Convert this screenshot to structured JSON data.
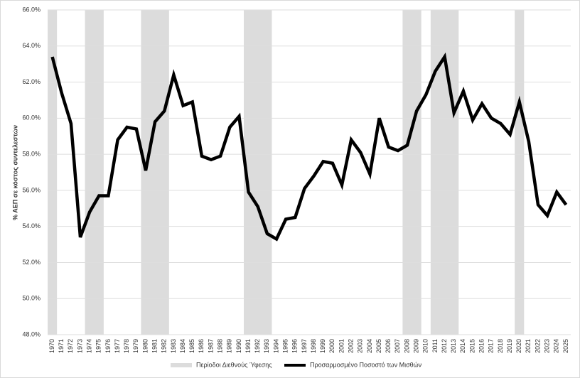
{
  "chart_data": {
    "type": "line",
    "y_label": "% ΑΕΠ σε κόστος συντελεστών",
    "categories": [
      "1970",
      "1971",
      "1972",
      "1973",
      "1974",
      "1975",
      "1976",
      "1977",
      "1978",
      "1979",
      "1980",
      "1981",
      "1982",
      "1983",
      "1984",
      "1985",
      "1986",
      "1987",
      "1988",
      "1989",
      "1990",
      "1991",
      "1992",
      "1993",
      "1994",
      "1995",
      "1996",
      "1997",
      "1998",
      "1999",
      "2000",
      "2001",
      "2002",
      "2003",
      "2004",
      "2005",
      "2006",
      "2007",
      "2008",
      "2009",
      "2010",
      "2011",
      "2012",
      "2013",
      "2014",
      "2015",
      "2016",
      "2017",
      "2018",
      "2019",
      "2020",
      "2021",
      "2022",
      "2023",
      "2024",
      "2025"
    ],
    "series": [
      {
        "name": "Προσαρμοσμένο Ποσοστό των Μισθών",
        "color": "#000000",
        "values": [
          63.4,
          61.4,
          59.7,
          53.4,
          54.8,
          55.7,
          55.7,
          58.8,
          59.5,
          59.4,
          57.1,
          59.8,
          60.4,
          62.4,
          60.7,
          60.9,
          57.9,
          57.7,
          57.9,
          59.5,
          60.1,
          55.9,
          55.1,
          53.6,
          53.3,
          54.4,
          54.5,
          56.1,
          56.8,
          57.6,
          57.5,
          56.3,
          58.8,
          58.1,
          56.9,
          60.0,
          58.4,
          58.2,
          58.5,
          60.4,
          61.3,
          62.6,
          63.4,
          60.3,
          61.5,
          59.9,
          60.8,
          60.0,
          59.7,
          59.1,
          60.9,
          58.7,
          55.2,
          54.6,
          55.9,
          55.2
        ]
      }
    ],
    "shaded": {
      "name": "Περίοδοι Διεθνούς Ύφεσης",
      "color": "#dcdcdc",
      "periods": [
        [
          "1970",
          "1970"
        ],
        [
          "1974",
          "1975"
        ],
        [
          "1980",
          "1982"
        ],
        [
          "1991",
          "1993"
        ],
        [
          "2008",
          "2009"
        ],
        [
          "2011",
          "2013"
        ],
        [
          "2020",
          "2020"
        ]
      ]
    },
    "ylim": [
      48,
      66
    ],
    "yticks": [
      {
        "value": 48,
        "label": "48.0%"
      },
      {
        "value": 50,
        "label": "50.0%"
      },
      {
        "value": 52,
        "label": "52.0%"
      },
      {
        "value": 54,
        "label": "54.0%"
      },
      {
        "value": 56,
        "label": "56.0%"
      },
      {
        "value": 58,
        "label": "58.0%"
      },
      {
        "value": 60,
        "label": "60.0%"
      },
      {
        "value": 62,
        "label": "62.0%"
      },
      {
        "value": 64,
        "label": "64.0%"
      },
      {
        "value": 66,
        "label": "66.0%"
      }
    ],
    "grid": true,
    "legend": "bottom"
  }
}
